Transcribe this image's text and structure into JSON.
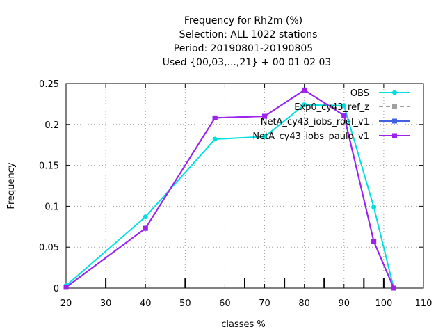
{
  "chart_data": {
    "type": "line",
    "title_lines": [
      "Frequency  for Rh2m (%)",
      "Selection: ALL    1022 stations",
      "Period: 20190801-20190805",
      "Used {00,03,...,21} + 00 01 02 03"
    ],
    "xlabel": "classes %",
    "ylabel": "Frequency",
    "xlim": [
      20,
      110
    ],
    "ylim": [
      0,
      0.25
    ],
    "x_ticks": [
      20,
      30,
      40,
      50,
      60,
      70,
      80,
      90,
      100,
      110
    ],
    "x_tick_labels": [
      "20",
      "30",
      "40",
      "50",
      "60",
      "70",
      "80",
      "90",
      "100",
      "110"
    ],
    "y_ticks": [
      0,
      0.05,
      0.1,
      0.15,
      0.2,
      0.25
    ],
    "y_tick_labels": [
      "0",
      "0.05",
      "0.1",
      "0.15",
      "0.2",
      "0.25"
    ],
    "class_boundaries": [
      30,
      50,
      65,
      75,
      85,
      95,
      100
    ],
    "grid": true,
    "legend_position": "top-right",
    "series": [
      {
        "name": "OBS",
        "color": "#00e0e0",
        "x": [
          20,
          40,
          57.5,
          70,
          80,
          90,
          97.5,
          102.5
        ],
        "y": [
          0.003,
          0.087,
          0.182,
          0.185,
          0.224,
          0.223,
          0.099,
          0.0
        ]
      },
      {
        "name": "Exp0_cy43_ref_z",
        "color": "#a0a0a0",
        "x": [],
        "y": []
      },
      {
        "name": "NetA_cy43_iobs_roel_v1",
        "color": "#4060e0",
        "x": [
          20,
          40,
          57.5,
          70,
          80,
          90,
          97.5,
          102.5
        ],
        "y": [
          0.001,
          0.073,
          0.208,
          0.21,
          0.242,
          0.211,
          0.057,
          0.0
        ]
      },
      {
        "name": "NetA_cy43_iobs_paulo_v1",
        "color": "#a020f0",
        "x": [
          20,
          40,
          57.5,
          70,
          80,
          90,
          97.5,
          102.5
        ],
        "y": [
          0.001,
          0.073,
          0.208,
          0.21,
          0.242,
          0.211,
          0.057,
          0.0
        ]
      }
    ]
  }
}
